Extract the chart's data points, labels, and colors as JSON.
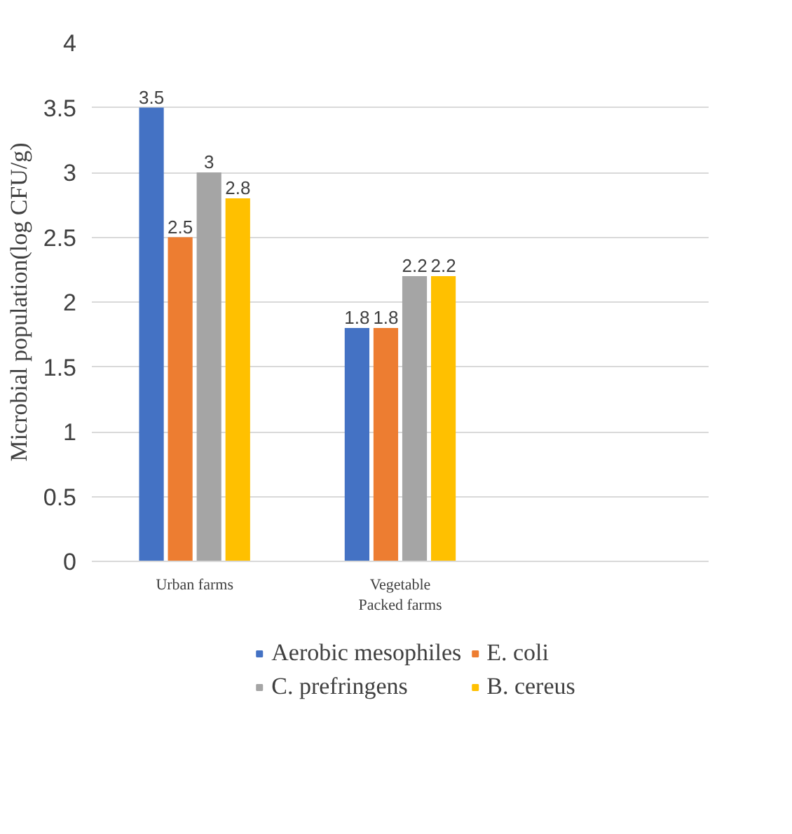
{
  "chart_data": {
    "type": "bar",
    "ylabel": "Microbial population(log CFU/g)",
    "categories": [
      "Urban farms",
      "Vegetable Packed farms",
      null
    ],
    "series": [
      {
        "name": "Aerobic mesophiles",
        "color": "#4472c4",
        "values": [
          3.5,
          1.8,
          null
        ]
      },
      {
        "name": "E. coli",
        "color": "#ed7d31",
        "values": [
          2.5,
          1.8,
          null
        ]
      },
      {
        "name": "C. prefringens",
        "color": "#a5a5a5",
        "values": [
          3,
          2.2,
          null
        ]
      },
      {
        "name": "B. cereus",
        "color": "#ffc000",
        "values": [
          2.8,
          2.2,
          null
        ]
      }
    ],
    "ylim": [
      0,
      4
    ],
    "yticks": [
      0,
      0.5,
      1,
      1.5,
      2,
      2.5,
      3,
      3.5,
      4
    ],
    "grid": "y",
    "legend": "bottom",
    "data_labels": true
  }
}
